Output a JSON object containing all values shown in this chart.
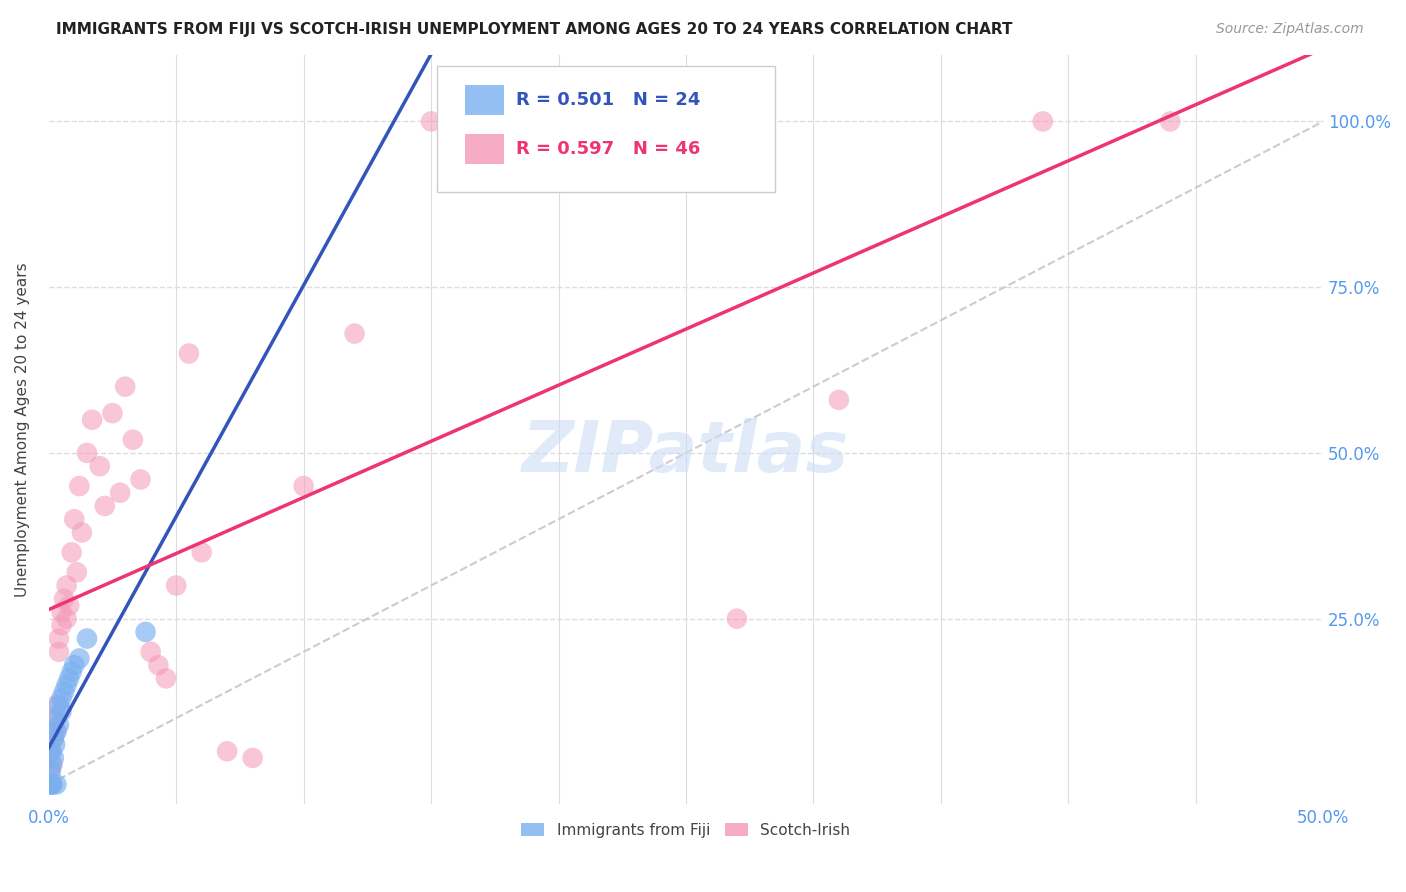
{
  "title": "IMMIGRANTS FROM FIJI VS SCOTCH-IRISH UNEMPLOYMENT AMONG AGES 20 TO 24 YEARS CORRELATION CHART",
  "source": "Source: ZipAtlas.com",
  "ylabel": "Unemployment Among Ages 20 to 24 years",
  "xlim": [
    0.0,
    0.5
  ],
  "ylim": [
    -0.03,
    1.1
  ],
  "watermark": "ZIPatlas",
  "fiji_R": 0.501,
  "fiji_N": 24,
  "scotch_R": 0.597,
  "scotch_N": 46,
  "fiji_color": "#7aaff0",
  "scotch_color": "#f598b8",
  "fiji_line_color": "#3355bb",
  "scotch_line_color": "#ee3377",
  "trend_line_color": "#cccccc",
  "fiji_x": [
    0.0005,
    0.0008,
    0.001,
    0.001,
    0.0012,
    0.0015,
    0.002,
    0.002,
    0.0025,
    0.003,
    0.003,
    0.003,
    0.004,
    0.004,
    0.005,
    0.005,
    0.006,
    0.007,
    0.008,
    0.009,
    0.01,
    0.012,
    0.015,
    0.038
  ],
  "fiji_y": [
    0.0,
    0.02,
    0.0,
    0.05,
    0.03,
    0.0,
    0.04,
    0.07,
    0.06,
    0.0,
    0.08,
    0.1,
    0.09,
    0.12,
    0.11,
    0.13,
    0.14,
    0.15,
    0.16,
    0.17,
    0.18,
    0.19,
    0.22,
    0.23
  ],
  "scotch_x": [
    0.0005,
    0.001,
    0.001,
    0.0015,
    0.002,
    0.002,
    0.003,
    0.003,
    0.004,
    0.004,
    0.005,
    0.005,
    0.006,
    0.007,
    0.007,
    0.008,
    0.009,
    0.01,
    0.011,
    0.012,
    0.013,
    0.015,
    0.017,
    0.02,
    0.022,
    0.025,
    0.028,
    0.03,
    0.033,
    0.036,
    0.04,
    0.043,
    0.046,
    0.05,
    0.055,
    0.06,
    0.07,
    0.08,
    0.1,
    0.12,
    0.15,
    0.2,
    0.27,
    0.31,
    0.39,
    0.44
  ],
  "scotch_y": [
    0.02,
    0.0,
    0.05,
    0.03,
    0.07,
    0.1,
    0.08,
    0.12,
    0.2,
    0.22,
    0.24,
    0.26,
    0.28,
    0.25,
    0.3,
    0.27,
    0.35,
    0.4,
    0.32,
    0.45,
    0.38,
    0.5,
    0.55,
    0.48,
    0.42,
    0.56,
    0.44,
    0.6,
    0.52,
    0.46,
    0.2,
    0.18,
    0.16,
    0.3,
    0.65,
    0.35,
    0.05,
    0.04,
    0.45,
    0.68,
    1.0,
    1.0,
    0.25,
    0.58,
    1.0,
    1.0
  ]
}
